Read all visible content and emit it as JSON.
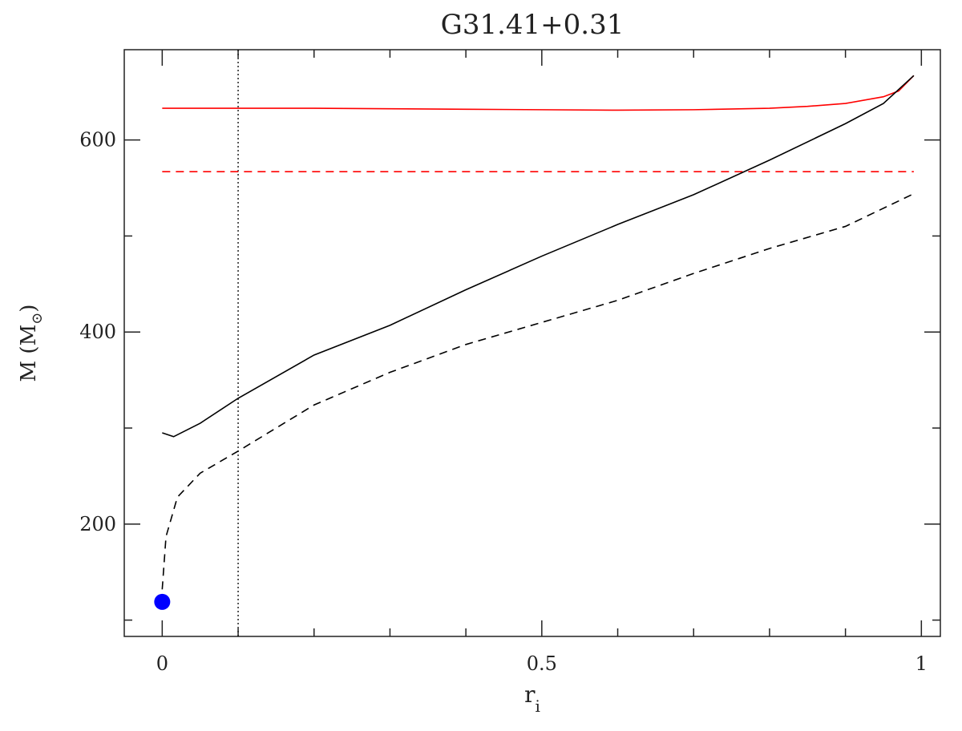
{
  "chart_data": {
    "type": "line",
    "title": "G31.41+0.31",
    "xlabel": "r",
    "xlabel_sub": "i",
    "ylabel": "M  (M",
    "ylabel_sub": "⊙",
    "ylabel_end": ")",
    "xlim": [
      -0.05,
      1.025
    ],
    "ylim": [
      83,
      694
    ],
    "xticks": [
      0,
      0.5,
      1
    ],
    "yticks": [
      200,
      400,
      600
    ],
    "xminor": [
      0.1,
      0.2,
      0.3,
      0.4,
      0.6,
      0.7,
      0.8,
      0.9
    ],
    "yminor": [
      100,
      300,
      500
    ],
    "vline": {
      "x": 0.1,
      "color": "#000000",
      "dash": "dotted"
    },
    "series": [
      {
        "color": "#ff0000",
        "dash": "solid",
        "x": [
          0,
          0.1,
          0.2,
          0.3,
          0.4,
          0.5,
          0.6,
          0.7,
          0.8,
          0.85,
          0.9,
          0.95,
          0.97,
          0.99
        ],
        "values": [
          633,
          633,
          633,
          632.5,
          632,
          631.5,
          631,
          631.5,
          633,
          635,
          638,
          645,
          651,
          667
        ]
      },
      {
        "color": "#ff0000",
        "dash": "dashed",
        "x": [
          0,
          0.99
        ],
        "values": [
          567,
          567
        ]
      },
      {
        "color": "#000000",
        "dash": "solid",
        "x": [
          0,
          0.015,
          0.05,
          0.1,
          0.2,
          0.3,
          0.4,
          0.5,
          0.6,
          0.7,
          0.8,
          0.9,
          0.95,
          0.99
        ],
        "values": [
          295,
          291,
          305,
          331,
          376,
          407,
          444,
          479,
          512,
          543,
          579,
          617,
          638,
          667
        ]
      },
      {
        "color": "#000000",
        "dash": "dashed",
        "x": [
          0,
          0.005,
          0.02,
          0.05,
          0.1,
          0.2,
          0.3,
          0.4,
          0.5,
          0.6,
          0.7,
          0.8,
          0.9,
          0.99
        ],
        "values": [
          132,
          187,
          228,
          253,
          276,
          324,
          358,
          387,
          410,
          433,
          461,
          487,
          510,
          544
        ]
      }
    ],
    "points": {
      "color": "#0000ff",
      "x": [
        0
      ],
      "values": [
        119
      ]
    }
  }
}
